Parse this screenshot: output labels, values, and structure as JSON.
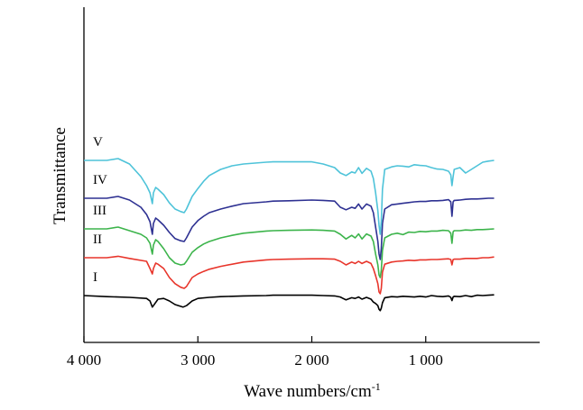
{
  "chart_data": {
    "type": "line",
    "title": "",
    "xlabel": "Wave numbers/cm",
    "xlabel_superscript": "-1",
    "ylabel": "Transmittance",
    "xlim": [
      4000,
      0
    ],
    "x_reversed": true,
    "x_ticks": [
      4000,
      3000,
      2000,
      1000
    ],
    "x_tick_labels": [
      "4 000",
      "3 000",
      "2 000",
      "1 000"
    ],
    "y_ticks": [],
    "grid": false,
    "legend": "none",
    "series": [
      {
        "name": "I",
        "color": "#000000",
        "offset": 0,
        "x": [
          4000,
          3800,
          3600,
          3450,
          3420,
          3400,
          3390,
          3350,
          3300,
          3250,
          3200,
          3150,
          3130,
          3100,
          3050,
          3000,
          2900,
          2800,
          2600,
          2400,
          2340,
          2200,
          2000,
          1900,
          1800,
          1750,
          1700,
          1650,
          1620,
          1590,
          1560,
          1520,
          1480,
          1460,
          1440,
          1420,
          1410,
          1400,
          1390,
          1380,
          1360,
          1300,
          1250,
          1200,
          1150,
          1100,
          1050,
          1000,
          950,
          900,
          850,
          800,
          780,
          770,
          760,
          750,
          700,
          650,
          600,
          550,
          500,
          450,
          400
        ],
        "values": [
          0.0,
          0.03,
          0.05,
          0.08,
          0.15,
          0.32,
          0.28,
          0.1,
          0.08,
          0.15,
          0.25,
          0.3,
          0.32,
          0.28,
          0.15,
          0.08,
          0.05,
          0.03,
          0.01,
          0.0,
          -0.01,
          -0.01,
          -0.01,
          0.0,
          0.01,
          0.04,
          0.12,
          0.06,
          0.08,
          0.04,
          0.1,
          0.05,
          0.1,
          0.18,
          0.22,
          0.28,
          0.38,
          0.42,
          0.35,
          0.2,
          0.06,
          0.03,
          0.04,
          0.02,
          0.03,
          0.04,
          0.02,
          0.04,
          0.0,
          0.02,
          0.03,
          0.01,
          0.05,
          0.14,
          0.04,
          0.02,
          0.03,
          0.0,
          0.03,
          -0.01,
          0.0,
          -0.01,
          -0.02
        ]
      },
      {
        "name": "II",
        "color": "#e8352b",
        "offset": -1.05,
        "x": [
          4000,
          3800,
          3700,
          3600,
          3450,
          3420,
          3400,
          3390,
          3370,
          3350,
          3300,
          3250,
          3200,
          3150,
          3120,
          3100,
          3050,
          3000,
          2950,
          2900,
          2800,
          2600,
          2400,
          2340,
          2200,
          2000,
          1900,
          1800,
          1750,
          1700,
          1650,
          1620,
          1590,
          1560,
          1520,
          1480,
          1460,
          1440,
          1420,
          1410,
          1400,
          1390,
          1380,
          1360,
          1300,
          1250,
          1200,
          1150,
          1100,
          1050,
          1000,
          950,
          900,
          850,
          800,
          780,
          770,
          760,
          750,
          700,
          650,
          600,
          550,
          500,
          450,
          400
        ],
        "values": [
          0.0,
          0.0,
          -0.04,
          0.02,
          0.1,
          0.3,
          0.45,
          0.3,
          0.15,
          0.18,
          0.3,
          0.55,
          0.72,
          0.82,
          0.85,
          0.8,
          0.55,
          0.45,
          0.38,
          0.32,
          0.24,
          0.12,
          0.06,
          0.05,
          0.04,
          0.03,
          0.03,
          0.04,
          0.1,
          0.2,
          0.12,
          0.16,
          0.1,
          0.16,
          0.1,
          0.16,
          0.3,
          0.5,
          0.72,
          0.95,
          1.0,
          0.85,
          0.4,
          0.18,
          0.12,
          0.1,
          0.09,
          0.07,
          0.08,
          0.06,
          0.06,
          0.05,
          0.05,
          0.04,
          0.03,
          0.05,
          0.2,
          0.05,
          0.04,
          0.04,
          0.02,
          0.02,
          0.02,
          0.0,
          0.0,
          -0.02
        ]
      },
      {
        "name": "III",
        "color": "#3cb44b",
        "offset": -1.85,
        "x": [
          4000,
          3800,
          3700,
          3600,
          3500,
          3450,
          3420,
          3400,
          3390,
          3370,
          3350,
          3300,
          3250,
          3200,
          3150,
          3120,
          3100,
          3050,
          3000,
          2950,
          2900,
          2800,
          2700,
          2600,
          2400,
          2340,
          2200,
          2000,
          1900,
          1800,
          1750,
          1700,
          1650,
          1620,
          1590,
          1560,
          1520,
          1480,
          1460,
          1440,
          1420,
          1410,
          1400,
          1390,
          1380,
          1360,
          1300,
          1250,
          1200,
          1150,
          1100,
          1050,
          1000,
          950,
          900,
          850,
          800,
          780,
          770,
          760,
          750,
          700,
          650,
          600,
          550,
          500,
          450,
          400
        ],
        "values": [
          0.0,
          0.0,
          -0.05,
          0.05,
          0.15,
          0.25,
          0.4,
          0.7,
          0.45,
          0.3,
          0.35,
          0.55,
          0.8,
          0.95,
          1.0,
          0.98,
          0.9,
          0.65,
          0.52,
          0.42,
          0.35,
          0.25,
          0.18,
          0.12,
          0.06,
          0.05,
          0.04,
          0.03,
          0.04,
          0.06,
          0.15,
          0.28,
          0.18,
          0.25,
          0.14,
          0.28,
          0.14,
          0.2,
          0.35,
          0.7,
          1.0,
          1.28,
          1.35,
          1.15,
          0.6,
          0.25,
          0.15,
          0.12,
          0.16,
          0.09,
          0.1,
          0.07,
          0.08,
          0.06,
          0.06,
          0.04,
          0.05,
          0.12,
          0.4,
          0.08,
          0.05,
          0.05,
          0.03,
          0.04,
          0.02,
          0.02,
          0.01,
          0.0
        ]
      },
      {
        "name": "IV",
        "color": "#2e3192",
        "offset": -2.7,
        "x": [
          4000,
          3800,
          3700,
          3600,
          3500,
          3450,
          3420,
          3400,
          3390,
          3370,
          3350,
          3300,
          3250,
          3200,
          3150,
          3120,
          3100,
          3050,
          3000,
          2950,
          2900,
          2800,
          2700,
          2600,
          2400,
          2340,
          2200,
          2000,
          1900,
          1800,
          1750,
          1700,
          1650,
          1620,
          1590,
          1560,
          1520,
          1480,
          1460,
          1440,
          1420,
          1410,
          1400,
          1390,
          1380,
          1360,
          1300,
          1250,
          1200,
          1150,
          1100,
          1050,
          1000,
          950,
          900,
          850,
          800,
          780,
          770,
          760,
          750,
          700,
          650,
          600,
          550,
          500,
          450,
          400
        ],
        "values": [
          0.0,
          0.0,
          -0.05,
          0.05,
          0.25,
          0.45,
          0.65,
          1.0,
          0.7,
          0.55,
          0.6,
          0.75,
          0.95,
          1.12,
          1.18,
          1.2,
          1.1,
          0.8,
          0.62,
          0.5,
          0.4,
          0.3,
          0.22,
          0.15,
          0.1,
          0.08,
          0.07,
          0.05,
          0.06,
          0.08,
          0.25,
          0.32,
          0.25,
          0.28,
          0.16,
          0.3,
          0.16,
          0.22,
          0.4,
          0.8,
          1.2,
          1.55,
          1.7,
          1.4,
          0.7,
          0.3,
          0.18,
          0.16,
          0.14,
          0.12,
          0.1,
          0.09,
          0.09,
          0.07,
          0.07,
          0.06,
          0.04,
          0.1,
          0.5,
          0.1,
          0.06,
          0.05,
          0.03,
          0.02,
          0.02,
          0.01,
          0.0,
          0.0
        ]
      },
      {
        "name": "V",
        "color": "#4ec3d9",
        "offset": -3.75,
        "x": [
          4000,
          3800,
          3700,
          3600,
          3500,
          3450,
          3420,
          3400,
          3390,
          3370,
          3350,
          3300,
          3250,
          3200,
          3150,
          3120,
          3100,
          3050,
          3000,
          2950,
          2900,
          2800,
          2700,
          2600,
          2400,
          2340,
          2200,
          2000,
          1900,
          1800,
          1750,
          1700,
          1650,
          1620,
          1590,
          1560,
          1520,
          1480,
          1460,
          1440,
          1420,
          1410,
          1400,
          1390,
          1380,
          1360,
          1300,
          1250,
          1200,
          1150,
          1100,
          1050,
          1000,
          950,
          900,
          850,
          800,
          780,
          770,
          760,
          750,
          700,
          650,
          600,
          550,
          500,
          450,
          400
        ],
        "values": [
          0.0,
          0.0,
          -0.05,
          0.1,
          0.45,
          0.7,
          0.9,
          1.2,
          0.9,
          0.75,
          0.8,
          0.95,
          1.18,
          1.35,
          1.42,
          1.45,
          1.35,
          1.0,
          0.78,
          0.58,
          0.42,
          0.25,
          0.15,
          0.1,
          0.05,
          0.04,
          0.04,
          0.04,
          0.1,
          0.2,
          0.35,
          0.42,
          0.32,
          0.35,
          0.2,
          0.36,
          0.22,
          0.3,
          0.5,
          0.9,
          1.4,
          1.8,
          2.05,
          1.7,
          0.8,
          0.25,
          0.18,
          0.15,
          0.16,
          0.18,
          0.12,
          0.14,
          0.15,
          0.2,
          0.24,
          0.25,
          0.3,
          0.4,
          0.7,
          0.45,
          0.25,
          0.2,
          0.35,
          0.25,
          0.15,
          0.05,
          0.02,
          0.0
        ]
      }
    ]
  }
}
